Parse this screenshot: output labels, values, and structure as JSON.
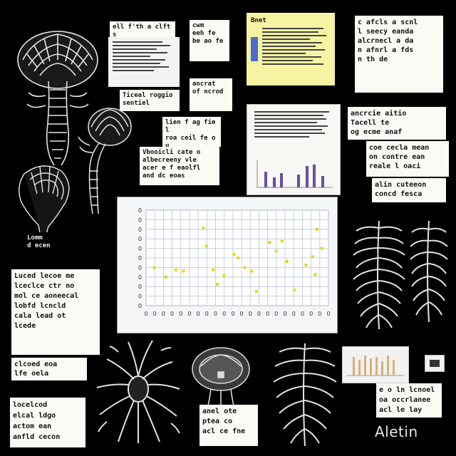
{
  "notes": {
    "n1": "ell f'th a clfts\nstrelle",
    "n2": "cwm\neeh fe\nbe ao fe",
    "n3": "Bnet",
    "n4": "c afcls a scnl\nl seecy eanda\nalcrnecl a da\nn afnrl a fds\nn th de",
    "n5": "Ticeal roggio\nsentiel",
    "n6": "ancrat\nof ncrod",
    "n7": "lien f ag fiel\nroa ceil fe ou\nt cea f cenot",
    "n8": "Vbooicli cate o\nalbecreeny vle\nacer e f eaolfl\nand dc eoas",
    "n9": "ancrcie aitio\nTacell te\nog ecme anaf",
    "n10": "coe cecla mean\non contre ean\nreale l oaci",
    "n11": "alin cuteeon\nconcd fesca",
    "n12": "Lomm\nd ecen",
    "n13": "Luced lecoe me\nlceclce ctr no\nmol ce aoneecal\nlobfd lcncld\ncala lead ot\nlcede",
    "n14": "clcoed eoa\nlfe oela",
    "n15": "locelcod\nelcal ldgo\nactom ean\nanfld cecon",
    "n16": "anel ote\nptea co\nacl ce fne",
    "n17": "e o ln lcnoel\noa occrlanee\nacl le lay"
  },
  "caption": "Aletin",
  "chart_data": {
    "type": "scatter",
    "title": "",
    "xlabel": "",
    "ylabel": "",
    "x_ticks": [
      "0",
      "0",
      "0",
      "0",
      "0",
      "0",
      "0",
      "0",
      "0",
      "0",
      "0",
      "0",
      "0",
      "0",
      "0",
      "0",
      "0",
      "0",
      "0",
      "0",
      "0",
      "0"
    ],
    "y_ticks": [
      "0",
      "0",
      "0",
      "0",
      "0",
      "0",
      "0",
      "0",
      "0",
      "0",
      "0"
    ],
    "grid": true,
    "series": [
      {
        "color": "#e8d21a",
        "points": [
          [
            1.0,
            6.2
          ],
          [
            2.4,
            5.4
          ],
          [
            3.6,
            6.0
          ],
          [
            4.5,
            5.9
          ],
          [
            6.9,
            9.5
          ],
          [
            7.3,
            8.0
          ],
          [
            8.1,
            6.0
          ],
          [
            8.6,
            4.8
          ],
          [
            9.4,
            5.5
          ],
          [
            10.6,
            7.3
          ],
          [
            11.1,
            7.0
          ],
          [
            11.9,
            6.2
          ],
          [
            12.7,
            5.9
          ],
          [
            13.3,
            4.2
          ],
          [
            14.9,
            8.3
          ],
          [
            15.7,
            7.6
          ],
          [
            16.4,
            8.4
          ],
          [
            17.0,
            6.7
          ],
          [
            17.9,
            4.3
          ],
          [
            19.3,
            6.4
          ],
          [
            20.1,
            7.1
          ],
          [
            20.4,
            5.6
          ],
          [
            20.6,
            9.4
          ],
          [
            21.2,
            7.8
          ]
        ]
      }
    ],
    "xlim": [
      0,
      22
    ],
    "ylim": [
      3,
      11
    ]
  }
}
